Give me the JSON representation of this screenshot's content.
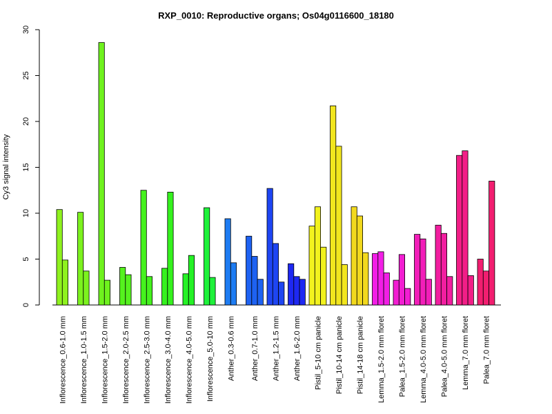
{
  "chart_data": {
    "type": "bar",
    "title": "RXP_0010: Reproductive organs; Os04g0116600_18180",
    "xlabel": "",
    "ylabel": "Cy3 signal intensity",
    "ylim": [
      0,
      30
    ],
    "yticks": [
      0,
      5,
      10,
      15,
      20,
      25,
      30
    ],
    "grid": false,
    "groups": [
      {
        "label": "Inflorescence_0.6-1.0 mm",
        "color": "#8ff21e",
        "values": [
          10.4,
          4.9
        ]
      },
      {
        "label": "Inflorescence_1.0-1.5 mm",
        "color": "#7cf21e",
        "values": [
          10.1,
          3.7
        ]
      },
      {
        "label": "Inflorescence_1.5-2.0 mm",
        "color": "#6ff21e",
        "values": [
          28.6,
          2.7
        ]
      },
      {
        "label": "Inflorescence_2.0-2.5 mm",
        "color": "#55f21e",
        "values": [
          4.1,
          3.3
        ]
      },
      {
        "label": "Inflorescence_2.5-3.0 mm",
        "color": "#45f21e",
        "values": [
          12.5,
          3.1
        ]
      },
      {
        "label": "Inflorescence_3.0-4.0 mm",
        "color": "#35f21e",
        "values": [
          4.0,
          12.3
        ]
      },
      {
        "label": "Inflorescence_4.0-5.0 mm",
        "color": "#25f226",
        "values": [
          3.4,
          5.4
        ]
      },
      {
        "label": "Inflorescence_5.0-10 mm",
        "color": "#1ef23a",
        "values": [
          10.6,
          3.0
        ]
      },
      {
        "label": "Anther_0.3-0.6 mm",
        "color": "#1e7cf2",
        "values": [
          9.4,
          4.6
        ]
      },
      {
        "label": "Anther_0.7-1.0 mm",
        "color": "#1e62f2",
        "values": [
          7.5,
          5.3,
          2.8
        ]
      },
      {
        "label": "Anther_1.2-1.5 mm",
        "color": "#1e45f2",
        "values": [
          12.7,
          6.7,
          2.5
        ]
      },
      {
        "label": "Anther_1.6-2.0 mm",
        "color": "#1e28f2",
        "values": [
          4.5,
          3.1,
          2.8
        ]
      },
      {
        "label": "Pistil_5-10 cm panicle",
        "color": "#f2f21e",
        "values": [
          8.6,
          10.7,
          6.3
        ]
      },
      {
        "label": "Pistil_10-14 cm panicle",
        "color": "#f2e61e",
        "values": [
          21.7,
          17.3,
          4.4
        ]
      },
      {
        "label": "Pistil_14-18 cm panicle",
        "color": "#f2d91e",
        "values": [
          10.7,
          9.7,
          5.7
        ]
      },
      {
        "label": "Lemma_1.5-2.0 mm floret",
        "color": "#f21ee6",
        "values": [
          5.6,
          5.8,
          3.5
        ]
      },
      {
        "label": "Palea_1.5-2.0 mm floret",
        "color": "#f21ed2",
        "values": [
          2.7,
          5.5,
          1.8
        ]
      },
      {
        "label": "Lemma_4.0-5.0 mm floret",
        "color": "#f21eb9",
        "values": [
          7.7,
          7.2,
          2.8
        ]
      },
      {
        "label": "Palea_4.0-5.0 mm floret",
        "color": "#f21ea0",
        "values": [
          8.7,
          7.8,
          3.1
        ]
      },
      {
        "label": "Lemma_7.0 mm floret",
        "color": "#f21e87",
        "values": [
          16.3,
          16.8,
          3.2
        ]
      },
      {
        "label": "Palea_7.0 mm floret",
        "color": "#f21e70",
        "values": [
          5.0,
          3.7,
          13.5
        ]
      }
    ]
  }
}
